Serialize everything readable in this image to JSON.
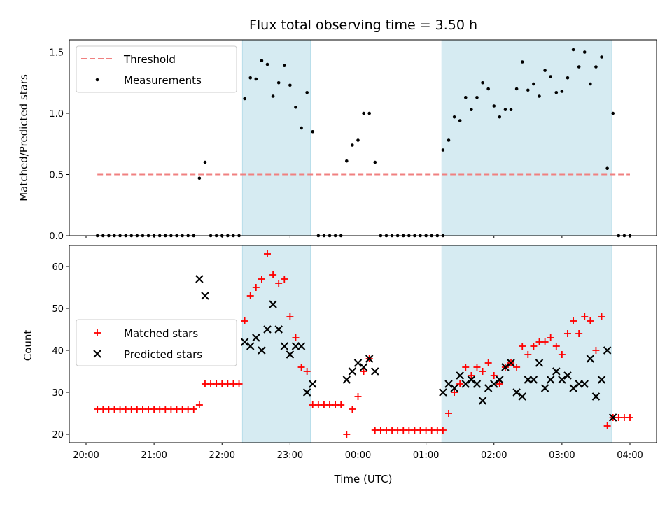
{
  "chart_data": [
    {
      "type": "scatter",
      "title": "Flux total observing time = 3.50 h",
      "ylabel": "Matched/Predicted stars",
      "ylim": [
        0,
        1.6
      ],
      "yticks": [
        0.0,
        0.5,
        1.0,
        1.5
      ],
      "ytick_labels": [
        "0.0",
        "0.5",
        "1.0",
        "1.5"
      ],
      "shaded_intervals": [
        [
          "22:18",
          "23:18"
        ],
        [
          "01:14",
          "03:44"
        ]
      ],
      "legend": {
        "position": "top-left",
        "entries": [
          "Threshold",
          "Measurements"
        ]
      },
      "series": [
        {
          "name": "Threshold",
          "kind": "dashed-line",
          "color": "#f08080",
          "points": [
            [
              "20:10",
              0.5
            ],
            [
              "04:00",
              0.5
            ]
          ]
        },
        {
          "name": "Measurements",
          "kind": "dot",
          "color": "#000000",
          "points": [
            [
              "20:10",
              0
            ],
            [
              "20:15",
              0
            ],
            [
              "20:20",
              0
            ],
            [
              "20:25",
              0
            ],
            [
              "20:30",
              0
            ],
            [
              "20:35",
              0
            ],
            [
              "20:40",
              0
            ],
            [
              "20:45",
              0
            ],
            [
              "20:50",
              0
            ],
            [
              "20:55",
              0
            ],
            [
              "21:00",
              0
            ],
            [
              "21:05",
              0
            ],
            [
              "21:10",
              0
            ],
            [
              "21:15",
              0
            ],
            [
              "21:20",
              0
            ],
            [
              "21:25",
              0
            ],
            [
              "21:30",
              0
            ],
            [
              "21:35",
              0
            ],
            [
              "21:40",
              0.47
            ],
            [
              "21:45",
              0.6
            ],
            [
              "21:50",
              0
            ],
            [
              "21:55",
              0
            ],
            [
              "22:00",
              0
            ],
            [
              "22:05",
              0
            ],
            [
              "22:10",
              0
            ],
            [
              "22:15",
              0
            ],
            [
              "22:20",
              1.12
            ],
            [
              "22:25",
              1.29
            ],
            [
              "22:30",
              1.28
            ],
            [
              "22:35",
              1.43
            ],
            [
              "22:40",
              1.4
            ],
            [
              "22:45",
              1.14
            ],
            [
              "22:50",
              1.25
            ],
            [
              "22:55",
              1.39
            ],
            [
              "23:00",
              1.23
            ],
            [
              "23:05",
              1.05
            ],
            [
              "23:10",
              0.88
            ],
            [
              "23:15",
              1.17
            ],
            [
              "23:20",
              0.85
            ],
            [
              "23:25",
              0
            ],
            [
              "23:30",
              0
            ],
            [
              "23:35",
              0
            ],
            [
              "23:40",
              0
            ],
            [
              "23:45",
              0
            ],
            [
              "23:50",
              0.61
            ],
            [
              "23:55",
              0.74
            ],
            [
              "00:00",
              0.78
            ],
            [
              "00:05",
              1.0
            ],
            [
              "00:10",
              1.0
            ],
            [
              "00:15",
              0.6
            ],
            [
              "00:20",
              0
            ],
            [
              "00:25",
              0
            ],
            [
              "00:30",
              0
            ],
            [
              "00:35",
              0
            ],
            [
              "00:40",
              0
            ],
            [
              "00:45",
              0
            ],
            [
              "00:50",
              0
            ],
            [
              "00:55",
              0
            ],
            [
              "01:00",
              0
            ],
            [
              "01:05",
              0
            ],
            [
              "01:10",
              0
            ],
            [
              "01:15",
              0
            ],
            [
              "01:15",
              0.7
            ],
            [
              "01:20",
              0.78
            ],
            [
              "01:25",
              0.97
            ],
            [
              "01:30",
              0.94
            ],
            [
              "01:35",
              1.13
            ],
            [
              "01:40",
              1.03
            ],
            [
              "01:45",
              1.13
            ],
            [
              "01:50",
              1.25
            ],
            [
              "01:55",
              1.2
            ],
            [
              "02:00",
              1.06
            ],
            [
              "02:05",
              0.97
            ],
            [
              "02:10",
              1.03
            ],
            [
              "02:15",
              1.03
            ],
            [
              "02:20",
              1.2
            ],
            [
              "02:25",
              1.42
            ],
            [
              "02:30",
              1.19
            ],
            [
              "02:35",
              1.24
            ],
            [
              "02:40",
              1.14
            ],
            [
              "02:45",
              1.35
            ],
            [
              "02:50",
              1.3
            ],
            [
              "02:55",
              1.17
            ],
            [
              "03:00",
              1.18
            ],
            [
              "03:05",
              1.29
            ],
            [
              "03:10",
              1.52
            ],
            [
              "03:15",
              1.38
            ],
            [
              "03:20",
              1.5
            ],
            [
              "03:25",
              1.24
            ],
            [
              "03:30",
              1.38
            ],
            [
              "03:35",
              1.46
            ],
            [
              "03:40",
              0.55
            ],
            [
              "03:45",
              1.0
            ],
            [
              "03:50",
              0
            ],
            [
              "03:55",
              0
            ],
            [
              "04:00",
              0
            ]
          ]
        }
      ]
    },
    {
      "type": "scatter",
      "xlabel": "Time (UTC)",
      "ylabel": "Count",
      "ylim": [
        18,
        65
      ],
      "yticks": [
        20,
        30,
        40,
        50,
        60
      ],
      "ytick_labels": [
        "20",
        "30",
        "40",
        "50",
        "60"
      ],
      "xticks": [
        "20:00",
        "21:00",
        "22:00",
        "23:00",
        "00:00",
        "01:00",
        "02:00",
        "03:00",
        "04:00"
      ],
      "shaded_intervals": [
        [
          "22:18",
          "23:18"
        ],
        [
          "01:14",
          "03:44"
        ]
      ],
      "legend": {
        "position": "center-left",
        "entries": [
          "Matched stars",
          "Predicted stars"
        ]
      },
      "series": [
        {
          "name": "Matched stars",
          "kind": "plus",
          "color": "#ff0000",
          "points": [
            [
              "20:10",
              26
            ],
            [
              "20:15",
              26
            ],
            [
              "20:20",
              26
            ],
            [
              "20:25",
              26
            ],
            [
              "20:30",
              26
            ],
            [
              "20:35",
              26
            ],
            [
              "20:40",
              26
            ],
            [
              "20:45",
              26
            ],
            [
              "20:50",
              26
            ],
            [
              "20:55",
              26
            ],
            [
              "21:00",
              26
            ],
            [
              "21:05",
              26
            ],
            [
              "21:10",
              26
            ],
            [
              "21:15",
              26
            ],
            [
              "21:20",
              26
            ],
            [
              "21:25",
              26
            ],
            [
              "21:30",
              26
            ],
            [
              "21:35",
              26
            ],
            [
              "21:40",
              27
            ],
            [
              "21:45",
              32
            ],
            [
              "21:50",
              32
            ],
            [
              "21:55",
              32
            ],
            [
              "22:00",
              32
            ],
            [
              "22:05",
              32
            ],
            [
              "22:10",
              32
            ],
            [
              "22:15",
              32
            ],
            [
              "22:20",
              47
            ],
            [
              "22:25",
              53
            ],
            [
              "22:30",
              55
            ],
            [
              "22:35",
              57
            ],
            [
              "22:40",
              63
            ],
            [
              "22:45",
              58
            ],
            [
              "22:50",
              56
            ],
            [
              "22:55",
              57
            ],
            [
              "23:00",
              48
            ],
            [
              "23:05",
              43
            ],
            [
              "23:10",
              36
            ],
            [
              "23:15",
              35
            ],
            [
              "23:20",
              27
            ],
            [
              "23:25",
              27
            ],
            [
              "23:30",
              27
            ],
            [
              "23:35",
              27
            ],
            [
              "23:40",
              27
            ],
            [
              "23:45",
              27
            ],
            [
              "23:50",
              20
            ],
            [
              "23:55",
              26
            ],
            [
              "00:00",
              29
            ],
            [
              "00:05",
              35
            ],
            [
              "00:10",
              38
            ],
            [
              "00:15",
              21
            ],
            [
              "00:20",
              21
            ],
            [
              "00:25",
              21
            ],
            [
              "00:30",
              21
            ],
            [
              "00:35",
              21
            ],
            [
              "00:40",
              21
            ],
            [
              "00:45",
              21
            ],
            [
              "00:50",
              21
            ],
            [
              "00:55",
              21
            ],
            [
              "01:00",
              21
            ],
            [
              "01:05",
              21
            ],
            [
              "01:10",
              21
            ],
            [
              "01:15",
              21
            ],
            [
              "01:20",
              25
            ],
            [
              "01:25",
              30
            ],
            [
              "01:30",
              32
            ],
            [
              "01:35",
              36
            ],
            [
              "01:40",
              34
            ],
            [
              "01:45",
              36
            ],
            [
              "01:50",
              35
            ],
            [
              "01:55",
              37
            ],
            [
              "02:00",
              34
            ],
            [
              "02:05",
              32
            ],
            [
              "02:10",
              36
            ],
            [
              "02:15",
              37
            ],
            [
              "02:20",
              36
            ],
            [
              "02:25",
              41
            ],
            [
              "02:30",
              39
            ],
            [
              "02:35",
              41
            ],
            [
              "02:40",
              42
            ],
            [
              "02:45",
              42
            ],
            [
              "02:50",
              43
            ],
            [
              "02:55",
              41
            ],
            [
              "03:00",
              39
            ],
            [
              "03:05",
              44
            ],
            [
              "03:10",
              47
            ],
            [
              "03:15",
              44
            ],
            [
              "03:20",
              48
            ],
            [
              "03:25",
              47
            ],
            [
              "03:30",
              40
            ],
            [
              "03:35",
              48
            ],
            [
              "03:40",
              22
            ],
            [
              "03:45",
              24
            ],
            [
              "03:50",
              24
            ],
            [
              "03:55",
              24
            ],
            [
              "04:00",
              24
            ]
          ]
        },
        {
          "name": "Predicted stars",
          "kind": "x",
          "color": "#000000",
          "points": [
            [
              "21:40",
              57
            ],
            [
              "21:45",
              53
            ],
            [
              "22:20",
              42
            ],
            [
              "22:25",
              41
            ],
            [
              "22:30",
              43
            ],
            [
              "22:35",
              40
            ],
            [
              "22:40",
              45
            ],
            [
              "22:45",
              51
            ],
            [
              "22:50",
              45
            ],
            [
              "22:55",
              41
            ],
            [
              "23:00",
              39
            ],
            [
              "23:05",
              41
            ],
            [
              "23:10",
              41
            ],
            [
              "23:15",
              30
            ],
            [
              "23:20",
              32
            ],
            [
              "23:50",
              33
            ],
            [
              "23:55",
              35
            ],
            [
              "00:00",
              37
            ],
            [
              "00:05",
              36
            ],
            [
              "00:10",
              38
            ],
            [
              "00:15",
              35
            ],
            [
              "01:15",
              30
            ],
            [
              "01:20",
              32
            ],
            [
              "01:25",
              31
            ],
            [
              "01:30",
              34
            ],
            [
              "01:35",
              32
            ],
            [
              "01:40",
              33
            ],
            [
              "01:45",
              32
            ],
            [
              "01:50",
              28
            ],
            [
              "01:55",
              31
            ],
            [
              "02:00",
              32
            ],
            [
              "02:05",
              33
            ],
            [
              "02:10",
              36
            ],
            [
              "02:15",
              37
            ],
            [
              "02:20",
              30
            ],
            [
              "02:25",
              29
            ],
            [
              "02:30",
              33
            ],
            [
              "02:35",
              33
            ],
            [
              "02:40",
              37
            ],
            [
              "02:45",
              31
            ],
            [
              "02:50",
              33
            ],
            [
              "02:55",
              35
            ],
            [
              "03:00",
              33
            ],
            [
              "03:05",
              34
            ],
            [
              "03:10",
              31
            ],
            [
              "03:15",
              32
            ],
            [
              "03:20",
              32
            ],
            [
              "03:25",
              38
            ],
            [
              "03:30",
              29
            ],
            [
              "03:35",
              33
            ],
            [
              "03:40",
              40
            ],
            [
              "03:45",
              24
            ]
          ]
        }
      ]
    }
  ]
}
